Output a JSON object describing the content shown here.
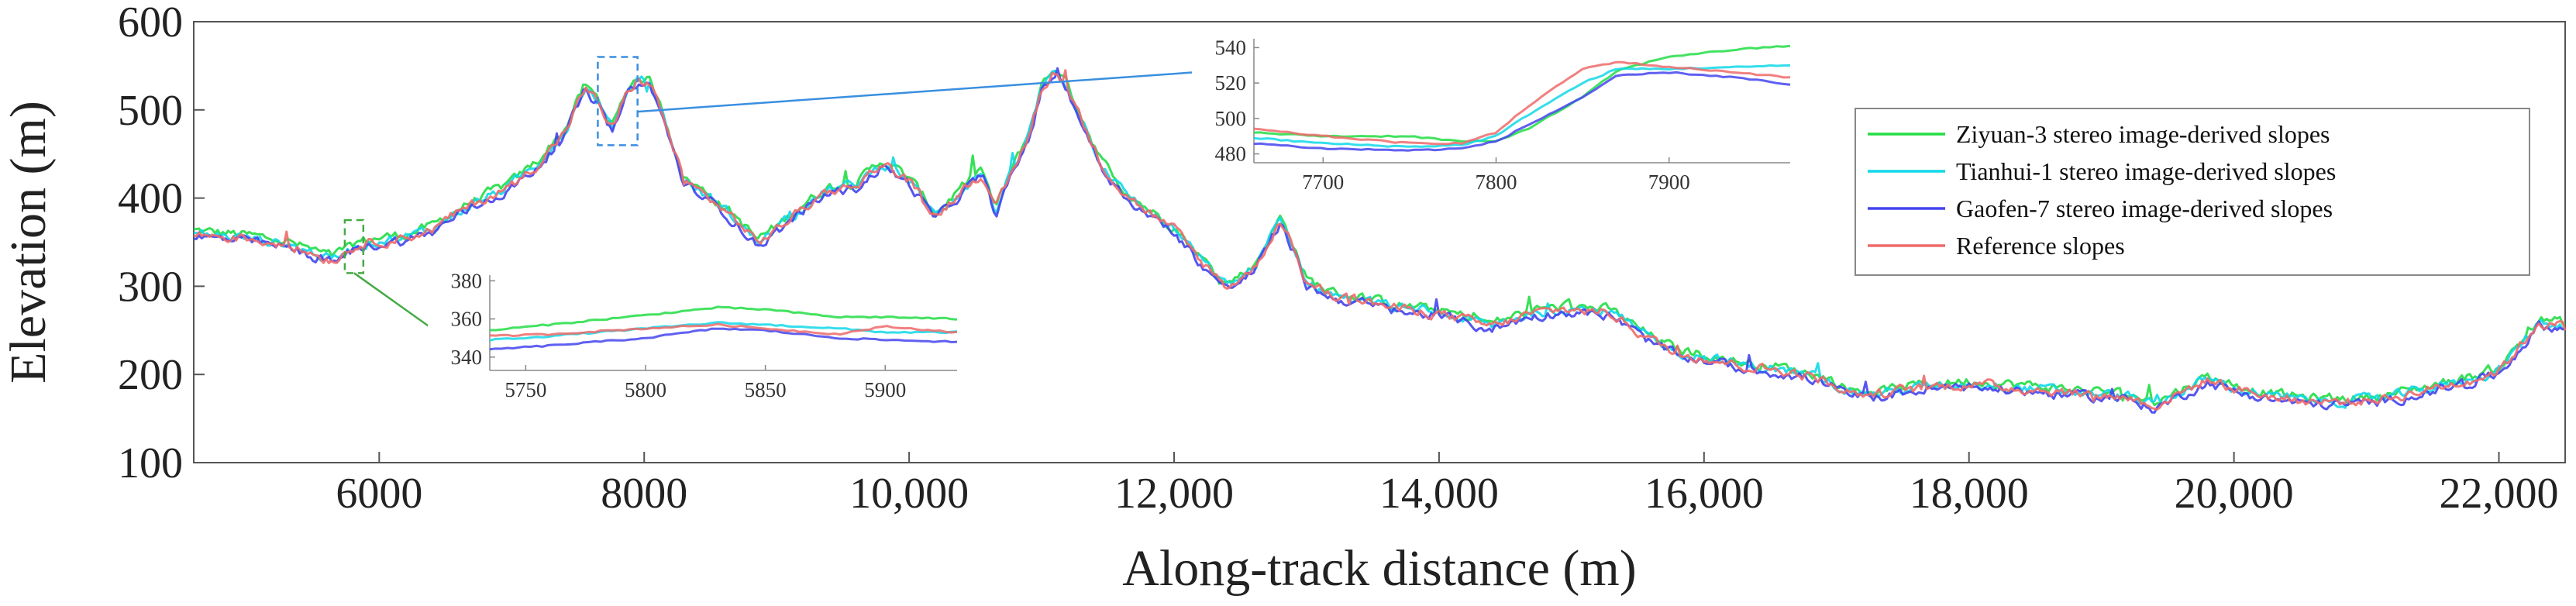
{
  "chart_data": {
    "type": "line",
    "xlabel": "Along-track distance (m)",
    "ylabel": "Elevation (m)",
    "xlim": [
      4600,
      22500
    ],
    "ylim": [
      100,
      600
    ],
    "x_ticks": [
      6000,
      8000,
      10000,
      12000,
      14000,
      16000,
      18000,
      20000,
      22000
    ],
    "x_tick_labels": [
      "6000",
      "8000",
      "10,000",
      "12,000",
      "14,000",
      "16,000",
      "18,000",
      "20,000",
      "22,000"
    ],
    "y_ticks": [
      100,
      200,
      300,
      400,
      500,
      600
    ],
    "y_tick_labels": [
      "100",
      "200",
      "300",
      "400",
      "500",
      "600"
    ],
    "legend_position": "right",
    "series": [
      {
        "name": "Ziyuan-3 stereo image-derived slopes",
        "color": "#22dd44",
        "offset": 4
      },
      {
        "name": "Tianhui-1 stereo image-derived slopes",
        "color": "#11d8e8",
        "offset": 0
      },
      {
        "name": "Gaofen-7 stereo image-derived slopes",
        "color": "#4444ee",
        "offset": -5
      },
      {
        "name": "Reference slopes",
        "color": "#ef6a6a",
        "offset": -1
      }
    ],
    "profile_x": [
      4600,
      5000,
      5300,
      5500,
      5650,
      5800,
      6000,
      6200,
      6400,
      6600,
      6800,
      7000,
      7200,
      7400,
      7550,
      7650,
      7750,
      7800,
      7850,
      7950,
      8050,
      8150,
      8300,
      8500,
      8700,
      8850,
      9000,
      9200,
      9400,
      9600,
      9800,
      10000,
      10200,
      10400,
      10550,
      10650,
      10750,
      10900,
      11000,
      11100,
      11200,
      11300,
      11450,
      11600,
      11800,
      12000,
      12200,
      12400,
      12600,
      12800,
      12900,
      13000,
      13200,
      13400,
      13700,
      14000,
      14400,
      14700,
      15000,
      15300,
      15600,
      15800,
      16000,
      16300,
      16600,
      16900,
      17100,
      17300,
      17600,
      18000,
      18400,
      18800,
      19200,
      19400,
      19600,
      19800,
      20000,
      20300,
      20600,
      20900,
      21200,
      21500,
      21800,
      22000,
      22200,
      22300,
      22500
    ],
    "profile_y": [
      360,
      355,
      348,
      338,
      330,
      345,
      352,
      356,
      365,
      385,
      400,
      415,
      440,
      475,
      525,
      510,
      480,
      490,
      515,
      535,
      530,
      490,
      420,
      400,
      375,
      350,
      365,
      390,
      410,
      415,
      440,
      420,
      380,
      410,
      430,
      385,
      420,
      470,
      525,
      545,
      525,
      490,
      440,
      410,
      385,
      365,
      330,
      300,
      320,
      375,
      345,
      305,
      290,
      285,
      275,
      270,
      255,
      270,
      275,
      270,
      240,
      225,
      220,
      210,
      205,
      195,
      180,
      178,
      185,
      190,
      185,
      180,
      175,
      165,
      180,
      195,
      185,
      175,
      170,
      170,
      175,
      185,
      195,
      205,
      240,
      260,
      255
    ],
    "insets": [
      {
        "xlim": [
          7660,
          7970
        ],
        "ylim": [
          475,
          545
        ],
        "x_ticks": [
          7700,
          7800,
          7900
        ],
        "x_tick_labels": [
          "7700",
          "7800",
          "7900"
        ],
        "y_ticks": [
          480,
          500,
          520,
          540
        ],
        "y_tick_labels": [
          "480",
          "500",
          "520",
          "540"
        ],
        "source_x_range": [
          7650,
          7950
        ],
        "source_y_range": [
          460,
          560
        ],
        "series_x": [
          7660,
          7700,
          7750,
          7780,
          7800,
          7820,
          7850,
          7870,
          7900,
          7940,
          7970
        ],
        "series_values": [
          [
            492,
            490,
            490,
            487,
            487,
            495,
            512,
            527,
            535,
            539,
            541
          ],
          [
            489,
            486,
            484,
            485,
            490,
            503,
            520,
            528,
            528,
            529,
            530
          ],
          [
            486,
            483,
            482,
            483,
            487,
            497,
            512,
            524,
            526,
            523,
            519
          ],
          [
            494,
            490,
            486,
            486,
            492,
            508,
            528,
            532,
            529,
            526,
            523
          ]
        ]
      },
      {
        "xlim": [
          5735,
          5930
        ],
        "ylim": [
          333,
          383
        ],
        "x_ticks": [
          5750,
          5800,
          5850,
          5900
        ],
        "x_tick_labels": [
          "5750",
          "5800",
          "5850",
          "5900"
        ],
        "y_ticks": [
          340,
          360,
          380
        ],
        "y_tick_labels": [
          "340",
          "360",
          "380"
        ],
        "source_x_range": [
          5740,
          5880
        ],
        "source_y_range": [
          315,
          375
        ],
        "series_x": [
          5735,
          5760,
          5800,
          5830,
          5850,
          5880,
          5900,
          5930
        ],
        "series_values": [
          [
            354,
            357,
            362,
            366,
            365,
            361,
            361,
            360
          ],
          [
            349,
            351,
            355,
            358,
            357,
            355,
            353,
            353
          ],
          [
            344,
            346,
            350,
            355,
            354,
            350,
            349,
            348
          ],
          [
            351,
            352,
            355,
            357,
            355,
            352,
            356,
            353
          ]
        ]
      }
    ]
  }
}
